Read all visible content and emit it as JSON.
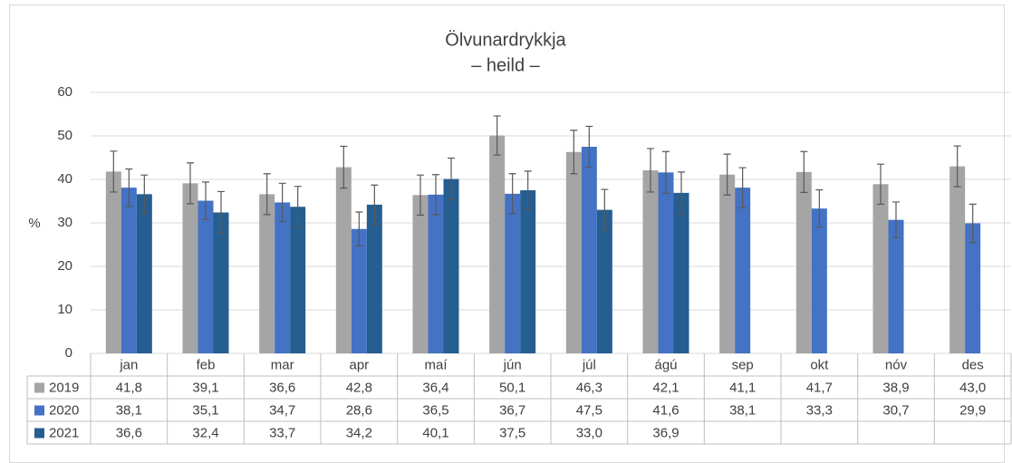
{
  "chart_data": {
    "type": "bar",
    "title": "Ölvunardrykkja",
    "subtitle": "– heild –",
    "y_label": "%",
    "categories": [
      "jan",
      "feb",
      "mar",
      "apr",
      "maí",
      "jún",
      "júl",
      "ágú",
      "sep",
      "okt",
      "nóv",
      "des"
    ],
    "ylim": [
      0,
      60
    ],
    "yticks": [
      0,
      10,
      20,
      30,
      40,
      50,
      60
    ],
    "grid": true,
    "series": [
      {
        "name": "2019",
        "color": "#a5a5a5",
        "values": [
          41.8,
          39.1,
          36.6,
          42.8,
          36.4,
          50.1,
          46.3,
          42.1,
          41.1,
          41.7,
          38.9,
          43.0
        ],
        "value_labels": [
          "41,8",
          "39,1",
          "36,6",
          "42,8",
          "36,4",
          "50,1",
          "46,3",
          "42,1",
          "41,1",
          "41,7",
          "38,9",
          "43,0"
        ],
        "errors": [
          4.7,
          4.7,
          4.7,
          4.8,
          4.6,
          4.5,
          5.0,
          5.0,
          4.7,
          4.7,
          4.6,
          4.7
        ]
      },
      {
        "name": "2020",
        "color": "#4472c4",
        "values": [
          38.1,
          35.1,
          34.7,
          28.6,
          36.5,
          36.7,
          47.5,
          41.6,
          38.1,
          33.3,
          30.7,
          29.9
        ],
        "value_labels": [
          "38,1",
          "35,1",
          "34,7",
          "28,6",
          "36,5",
          "36,7",
          "47,5",
          "41,6",
          "38,1",
          "33,3",
          "30,7",
          "29,9"
        ],
        "errors": [
          4.3,
          4.3,
          4.4,
          3.9,
          4.6,
          4.6,
          4.7,
          4.8,
          4.6,
          4.3,
          4.1,
          4.4
        ]
      },
      {
        "name": "2021",
        "color": "#255e91",
        "values": [
          36.6,
          32.4,
          33.7,
          34.2,
          40.1,
          37.5,
          33.0,
          36.9,
          null,
          null,
          null,
          null
        ],
        "value_labels": [
          "36,6",
          "32,4",
          "33,7",
          "34,2",
          "40,1",
          "37,5",
          "33,0",
          "36,9",
          null,
          null,
          null,
          null
        ],
        "errors": [
          4.4,
          4.8,
          4.7,
          4.5,
          4.8,
          4.4,
          4.7,
          4.8,
          null,
          null,
          null,
          null
        ]
      }
    ]
  }
}
